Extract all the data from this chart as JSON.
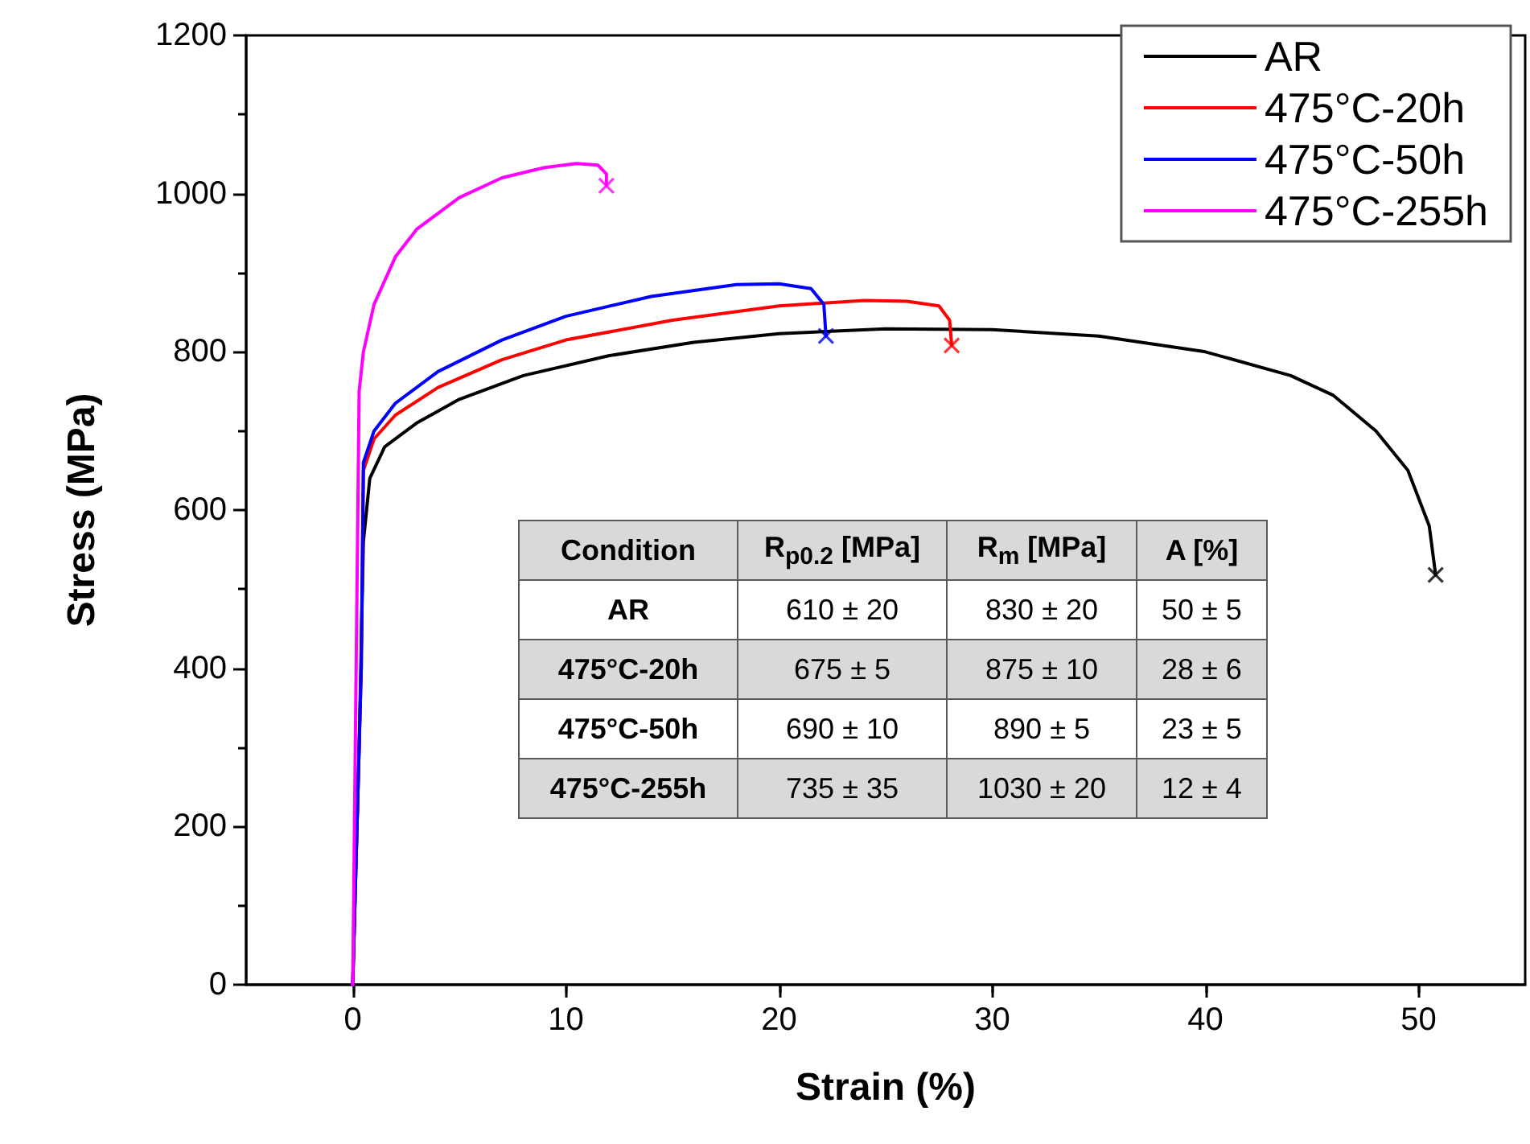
{
  "chart_data": {
    "type": "line",
    "xlabel": "Strain (%)",
    "ylabel": "Stress (MPa)",
    "xlim": [
      -5,
      55
    ],
    "xticks": [
      0,
      10,
      20,
      30,
      40,
      50
    ],
    "ylim": [
      0,
      1200
    ],
    "yticks": [
      0,
      200,
      400,
      600,
      800,
      1000,
      1200
    ],
    "legend": "top right",
    "grid": false,
    "series": [
      {
        "name": "AR",
        "color": "#000000",
        "x": [
          0,
          0.3,
          0.5,
          0.8,
          1.5,
          3,
          5,
          8,
          12,
          16,
          20,
          25,
          30,
          35,
          40,
          44,
          46,
          48,
          49.5,
          50.5,
          50.8
        ],
        "values": [
          0,
          300,
          560,
          640,
          680,
          710,
          740,
          770,
          795,
          812,
          823,
          829,
          828,
          820,
          800,
          770,
          745,
          700,
          650,
          580,
          518
        ]
      },
      {
        "name": "475°C-20h",
        "color": "#ff0000",
        "x": [
          0,
          0.4,
          0.5,
          1,
          2,
          4,
          7,
          10,
          15,
          20,
          24,
          26,
          27.5,
          28,
          28.1
        ],
        "values": [
          0,
          400,
          650,
          690,
          720,
          755,
          790,
          815,
          840,
          858,
          865,
          864,
          858,
          840,
          808
        ]
      },
      {
        "name": "475°C-50h",
        "color": "#0000ff",
        "x": [
          0,
          0.4,
          0.5,
          1,
          2,
          4,
          7,
          10,
          14,
          18,
          20,
          21.5,
          22.1,
          22.2
        ],
        "values": [
          0,
          400,
          660,
          700,
          735,
          775,
          815,
          845,
          870,
          885,
          886,
          880,
          860,
          820
        ]
      },
      {
        "name": "475°C-255h",
        "color": "#ff00ff",
        "x": [
          0,
          0.2,
          0.3,
          0.5,
          1,
          2,
          3,
          5,
          7,
          9,
          10.5,
          11.5,
          11.9,
          11.9
        ],
        "values": [
          0,
          500,
          750,
          800,
          860,
          920,
          955,
          995,
          1020,
          1033,
          1038,
          1036,
          1025,
          1010
        ]
      },
      {
        "type": "scatter",
        "marker": "cross",
        "color": "#000000",
        "x": [
          50.8
        ],
        "values": [
          518
        ]
      },
      {
        "type": "scatter",
        "marker": "cross",
        "color": "#ff0000",
        "x": [
          28.1
        ],
        "values": [
          808
        ]
      },
      {
        "type": "scatter",
        "marker": "cross",
        "color": "#0000ff",
        "x": [
          22.2
        ],
        "values": [
          820
        ]
      },
      {
        "type": "scatter",
        "marker": "cross",
        "color": "#ff00ff",
        "x": [
          11.9
        ],
        "values": [
          1010
        ]
      }
    ],
    "annotations": [
      "Condition",
      "R$_{p0.2}$ [MPa]",
      "R$_{m}$ [MPa]",
      "A [%]",
      "AR",
      "610 ± 20",
      "830 ± 20",
      "50 ± 5",
      "475°C-20h",
      "675 ± 5",
      "875 ± 10",
      "28 ± 6",
      "475°C-50h",
      "690 ± 10",
      "890 ± 5",
      "23 ± 5",
      "475°C-255h",
      "735 ± 35",
      "1030 ± 20",
      "12 ± 4"
    ]
  }
}
